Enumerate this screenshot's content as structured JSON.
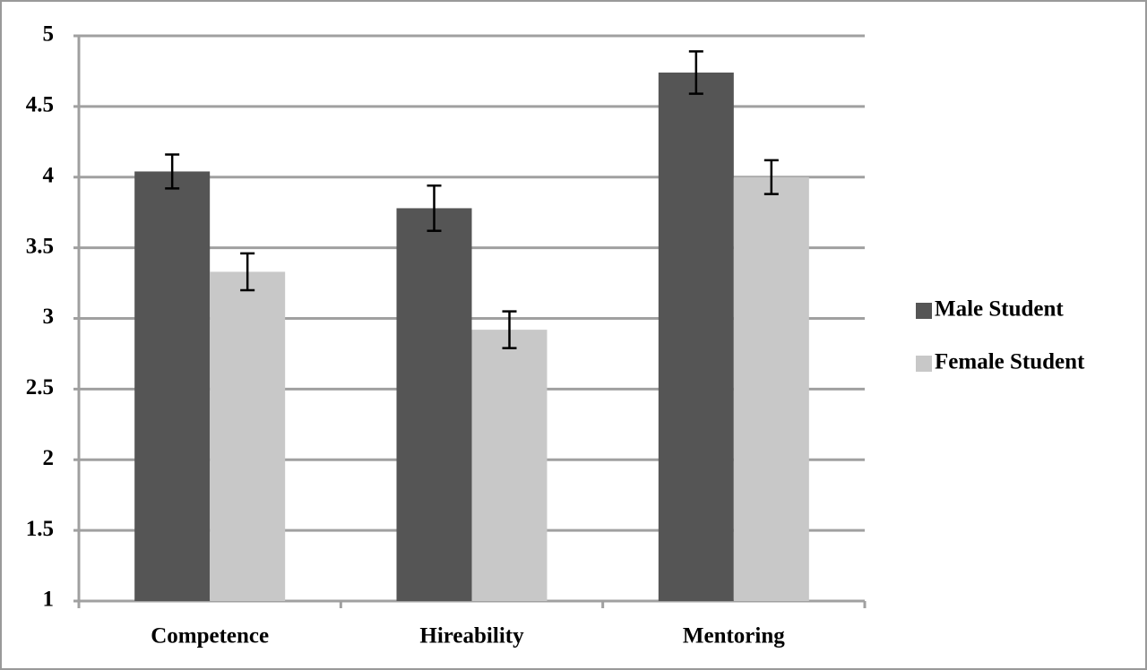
{
  "chart_data": {
    "type": "bar",
    "categories": [
      "Competence",
      "Hireability",
      "Mentoring"
    ],
    "series": [
      {
        "name": "Male Student",
        "color": "#555555",
        "values": [
          4.04,
          3.78,
          4.74
        ],
        "errors": [
          0.12,
          0.16,
          0.15
        ]
      },
      {
        "name": "Female Student",
        "color": "#c8c8c8",
        "values": [
          3.33,
          2.92,
          4.0
        ],
        "errors": [
          0.13,
          0.13,
          0.12
        ]
      }
    ],
    "ylim": [
      1,
      5
    ],
    "yticks": [
      1,
      1.5,
      2,
      2.5,
      3,
      3.5,
      4,
      4.5,
      5
    ],
    "grid": true,
    "legend": "right"
  }
}
